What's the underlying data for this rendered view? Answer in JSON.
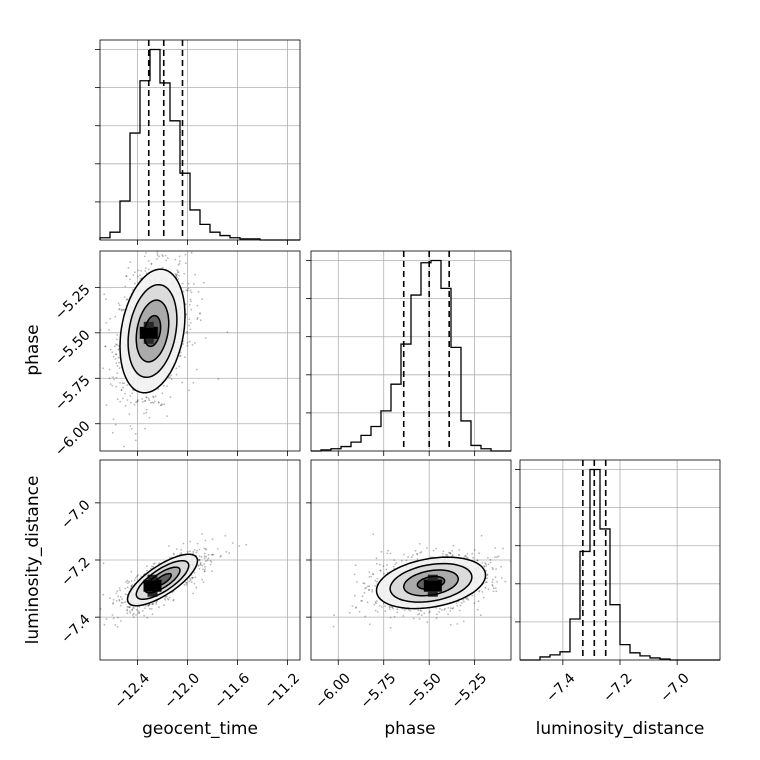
{
  "chart_data": {
    "type": "corner",
    "parameters": [
      {
        "name": "geocent_time",
        "label": "geocent_time",
        "range": [
          -12.7,
          -11.1
        ],
        "ticks": [
          -12.4,
          -12.0,
          -11.6,
          -11.2
        ],
        "tick_labels": [
          "−12.4",
          "−12.0",
          "−11.6",
          "−11.2"
        ],
        "quantiles": [
          -12.31,
          -12.19,
          -12.04
        ]
      },
      {
        "name": "phase",
        "label": "phase",
        "range": [
          -6.15,
          -5.05
        ],
        "ticks": [
          -6.0,
          -5.75,
          -5.5,
          -5.25
        ],
        "tick_labels": [
          "−6.00",
          "−5.75",
          "−5.50",
          "−5.25"
        ],
        "quantiles": [
          -5.64,
          -5.5,
          -5.39
        ]
      },
      {
        "name": "luminosity_distance",
        "label": "luminosity_distance",
        "range": [
          -7.55,
          -6.85
        ],
        "ticks": [
          -7.4,
          -7.2,
          -7.0
        ],
        "tick_labels": [
          "−7.4",
          "−7.2",
          "−7.0"
        ],
        "quantiles": [
          -7.33,
          -7.29,
          -7.25
        ]
      }
    ],
    "histograms": [
      {
        "parameter": "geocent_time",
        "edges": [
          -12.7,
          -12.62,
          -12.54,
          -12.46,
          -12.38,
          -12.3,
          -12.22,
          -12.14,
          -12.06,
          -11.98,
          -11.9,
          -11.82,
          -11.74,
          -11.66,
          -11.58,
          -11.5,
          -11.42,
          -11.34,
          -11.26,
          -11.18,
          -11.1
        ],
        "counts": [
          2,
          7,
          35,
          96,
          143,
          171,
          141,
          107,
          60,
          27,
          14,
          7,
          4,
          2,
          1,
          1,
          0,
          0,
          0,
          0
        ]
      },
      {
        "parameter": "phase",
        "edges": [
          -6.15,
          -6.095,
          -6.04,
          -5.985,
          -5.93,
          -5.875,
          -5.82,
          -5.765,
          -5.71,
          -5.655,
          -5.6,
          -5.545,
          -5.49,
          -5.435,
          -5.38,
          -5.325,
          -5.27,
          -5.215,
          -5.16,
          -5.105,
          -5.05
        ],
        "counts": [
          0,
          1,
          2,
          4,
          8,
          14,
          22,
          36,
          60,
          96,
          140,
          169,
          171,
          146,
          93,
          27,
          5,
          2,
          0,
          0
        ]
      },
      {
        "parameter": "luminosity_distance",
        "edges": [
          -7.55,
          -7.515,
          -7.48,
          -7.445,
          -7.41,
          -7.375,
          -7.34,
          -7.305,
          -7.27,
          -7.235,
          -7.2,
          -7.165,
          -7.13,
          -7.095,
          -7.06,
          -7.025,
          -6.99,
          -6.955,
          -6.92,
          -6.885,
          -6.85
        ],
        "counts": [
          0,
          0,
          3,
          5,
          8,
          40,
          106,
          186,
          128,
          54,
          15,
          7,
          4,
          2,
          1,
          0,
          0,
          0,
          0,
          0
        ]
      }
    ],
    "joint_distributions": [
      {
        "x": "geocent_time",
        "y": "phase",
        "center": [
          -12.28,
          -5.49
        ],
        "sigma": [
          0.13,
          0.17
        ],
        "correlation": 0.25,
        "peak": [
          -12.31,
          -5.5
        ]
      },
      {
        "x": "geocent_time",
        "y": "luminosity_distance",
        "center": [
          -12.2,
          -7.27
        ],
        "sigma": [
          0.14,
          0.045
        ],
        "correlation": 0.75,
        "peak": [
          -12.28,
          -7.29
        ]
      },
      {
        "x": "phase",
        "y": "luminosity_distance",
        "center": [
          -5.49,
          -7.28
        ],
        "sigma": [
          0.15,
          0.045
        ],
        "correlation": 0.3,
        "peak": [
          -5.48,
          -7.29
        ]
      }
    ],
    "contour_levels": [
      "0.5-sigma",
      "1-sigma",
      "1.5-sigma",
      "2-sigma"
    ],
    "quantile_line_style": "dashed",
    "grid": true
  }
}
